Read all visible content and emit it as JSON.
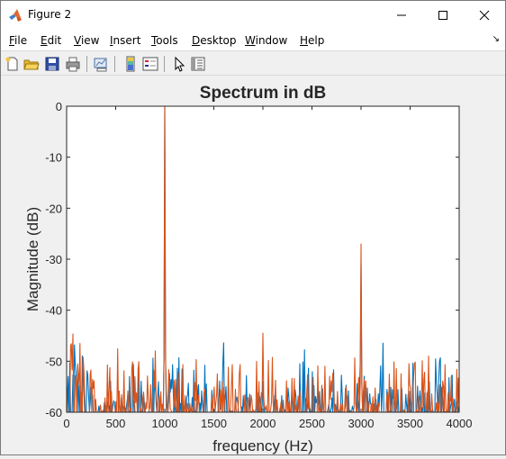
{
  "window": {
    "title": "Figure 2"
  },
  "menu": {
    "items": [
      {
        "label": "File",
        "underline": "F",
        "rest": "ile"
      },
      {
        "label": "Edit",
        "underline": "E",
        "rest": "dit"
      },
      {
        "label": "View",
        "underline": "V",
        "rest": "iew"
      },
      {
        "label": "Insert",
        "underline": "I",
        "rest": "nsert"
      },
      {
        "label": "Tools",
        "underline": "T",
        "rest": "ools"
      },
      {
        "label": "Desktop",
        "underline": "D",
        "rest": "esktop"
      },
      {
        "label": "Window",
        "underline": "W",
        "rest": "indow"
      },
      {
        "label": "Help",
        "underline": "H",
        "rest": "elp"
      }
    ],
    "arrow": "↘"
  },
  "toolbar": {
    "buttons": [
      "new-figure-icon",
      "open-file-icon",
      "save-icon",
      "print-icon",
      "link-plot-icon",
      "colorbar-icon",
      "legend-icon",
      "pointer-icon",
      "property-inspector-icon"
    ]
  },
  "chart_data": {
    "type": "line",
    "title": "Spectrum in dB",
    "xlabel": "frequency (Hz)",
    "ylabel": "Magnitude (dB)",
    "xlim": [
      0,
      4000
    ],
    "ylim": [
      -60,
      0
    ],
    "xticks": [
      "0",
      "500",
      "1000",
      "1500",
      "2000",
      "2500",
      "3000",
      "3500",
      "4000"
    ],
    "yticks": [
      "0",
      "-10",
      "-20",
      "-30",
      "-40",
      "-50",
      "-60"
    ],
    "grid": false,
    "colors": {
      "series1": "#0072BD",
      "series2": "#D95319"
    },
    "series": [
      {
        "peaks": [
          [
            1000,
            0
          ],
          [
            2000,
            -54
          ],
          [
            3000,
            -31
          ]
        ]
      },
      {
        "peaks": [
          [
            1000,
            0
          ],
          [
            2000,
            -44.5
          ],
          [
            3000,
            -27
          ]
        ]
      }
    ]
  }
}
